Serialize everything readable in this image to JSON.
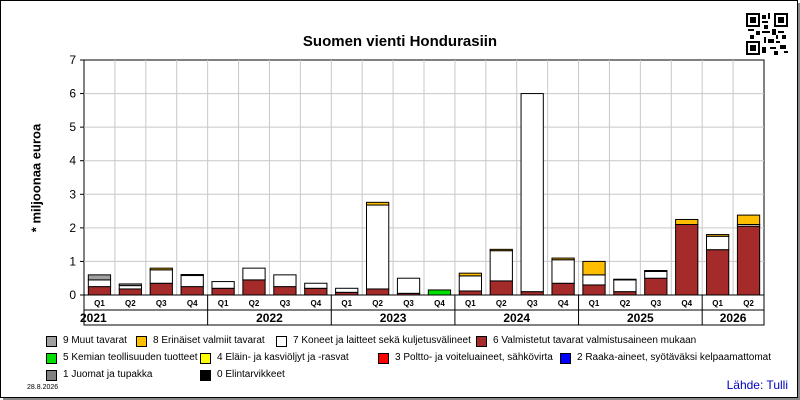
{
  "title": "Suomen vienti Hondurasiin",
  "footer": {
    "date": "28.8.2026",
    "source": "Lähde: Tulli"
  },
  "colors": {
    "plot_bg": "#ffffff",
    "frame_shadow": "#888888",
    "source_text": "#0000c0"
  },
  "chart_data": {
    "type": "bar",
    "stacked": true,
    "title": "Suomen vienti Hondurasiin",
    "ylabel": "* miljoonaa euroa",
    "xlabel": "",
    "ylim": [
      0,
      7
    ],
    "yticks": [
      0,
      1,
      2,
      3,
      4,
      5,
      6,
      7
    ],
    "grid": true,
    "legend_position": "bottom",
    "categories": [
      "Q1",
      "Q2",
      "Q3",
      "Q4",
      "Q1",
      "Q2",
      "Q3",
      "Q4",
      "Q1",
      "Q2",
      "Q3",
      "Q4",
      "Q1",
      "Q2",
      "Q3",
      "Q4",
      "Q1",
      "Q2",
      "Q3",
      "Q4",
      "Q1",
      "Q2"
    ],
    "years": [
      {
        "label": "2021",
        "quarters": 4
      },
      {
        "label": "2022",
        "quarters": 4
      },
      {
        "label": "2023",
        "quarters": 4
      },
      {
        "label": "2024",
        "quarters": 4
      },
      {
        "label": "2025",
        "quarters": 4
      },
      {
        "label": "2026",
        "quarters": 2
      }
    ],
    "series": [
      {
        "name": "9 Muut tavarat",
        "color": "#a0a0a0",
        "values": [
          0.15,
          0.05,
          0,
          0,
          0,
          0,
          0,
          0,
          0,
          0,
          0,
          0,
          0,
          0,
          0,
          0,
          0,
          0,
          0,
          0,
          0,
          0
        ]
      },
      {
        "name": "8 Erinäiset valmiit tavarat",
        "color": "#ffbf00",
        "values": [
          0,
          0,
          0.05,
          0.03,
          0,
          0,
          0,
          0,
          0,
          0.08,
          0,
          0,
          0.08,
          0.04,
          0,
          0.05,
          0.4,
          0.02,
          0.03,
          0.15,
          0.05,
          0.28
        ]
      },
      {
        "name": "7 Koneet ja laitteet sekä kuljetusvälineet",
        "color": "#ffffff",
        "values": [
          0.2,
          0.1,
          0.4,
          0.33,
          0.2,
          0.35,
          0.35,
          0.15,
          0.12,
          2.5,
          0.45,
          0,
          0.45,
          0.9,
          5.9,
          0.7,
          0.3,
          0.35,
          0.2,
          0,
          0.4,
          0.05
        ]
      },
      {
        "name": "6 Valmistetut tavarat valmistusaineen mukaan",
        "color": "#a52a2a",
        "values": [
          0.25,
          0.18,
          0.35,
          0.25,
          0.2,
          0.45,
          0.25,
          0.2,
          0.08,
          0.18,
          0.05,
          0,
          0.12,
          0.42,
          0.1,
          0.35,
          0.3,
          0.1,
          0.5,
          2.1,
          1.35,
          2.05
        ]
      },
      {
        "name": "5 Kemian teollisuuden tuotteet",
        "color": "#00e000",
        "values": [
          0,
          0,
          0,
          0,
          0,
          0,
          0,
          0,
          0,
          0,
          0,
          0.15,
          0,
          0,
          0,
          0,
          0,
          0,
          0,
          0,
          0,
          0
        ]
      },
      {
        "name": "4 Eläin- ja kasviöljyt ja -rasvat",
        "color": "#ffff00",
        "values": [
          0,
          0,
          0,
          0,
          0,
          0,
          0,
          0,
          0,
          0,
          0,
          0,
          0,
          0,
          0,
          0,
          0,
          0,
          0,
          0,
          0,
          0
        ]
      },
      {
        "name": "3 Poltto- ja voiteluaineet, sähkövirta",
        "color": "#ff0000",
        "values": [
          0,
          0,
          0,
          0,
          0,
          0,
          0,
          0,
          0,
          0,
          0,
          0,
          0,
          0,
          0,
          0,
          0,
          0,
          0,
          0,
          0,
          0
        ]
      },
      {
        "name": "2 Raaka-aineet, syötäväksi kelpaamattomat",
        "color": "#0000ff",
        "values": [
          0,
          0,
          0,
          0,
          0,
          0,
          0,
          0,
          0,
          0,
          0,
          0,
          0,
          0,
          0,
          0,
          0,
          0,
          0,
          0,
          0,
          0
        ]
      },
      {
        "name": "1 Juomat ja tupakka",
        "color": "#808080",
        "values": [
          0,
          0,
          0,
          0,
          0,
          0,
          0,
          0,
          0,
          0,
          0,
          0,
          0,
          0,
          0,
          0,
          0,
          0,
          0,
          0,
          0,
          0
        ]
      },
      {
        "name": "0 Elintarvikkeet",
        "color": "#000000",
        "values": [
          0,
          0,
          0,
          0,
          0,
          0,
          0,
          0,
          0,
          0,
          0,
          0,
          0,
          0,
          0,
          0,
          0,
          0,
          0,
          0,
          0,
          0
        ]
      }
    ],
    "stack_order": [
      "0 Elintarvikkeet",
      "1 Juomat ja tupakka",
      "2 Raaka-aineet, syötäväksi kelpaamattomat",
      "3 Poltto- ja voiteluaineet, sähkövirta",
      "5 Kemian teollisuuden tuotteet",
      "4 Eläin- ja kasviöljyt ja -rasvat",
      "6 Valmistetut tavarat valmistusaineen mukaan",
      "7 Koneet ja laitteet sekä kuljetusvälineet",
      "8 Erinäiset valmiit tavarat",
      "9 Muut tavarat"
    ]
  },
  "legend_order": [
    "9 Muut tavarat",
    "8 Erinäiset valmiit tavarat",
    "7 Koneet ja laitteet sekä kuljetusvälineet",
    "6 Valmistetut tavarat valmistusaineen mukaan",
    "5 Kemian teollisuuden tuotteet",
    "4 Eläin- ja kasviöljyt ja -rasvat",
    "3 Poltto- ja voiteluaineet, sähkövirta",
    "2 Raaka-aineet, syötäväksi kelpaamattomat",
    "1 Juomat ja tupakka",
    "0 Elintarvikkeet"
  ]
}
